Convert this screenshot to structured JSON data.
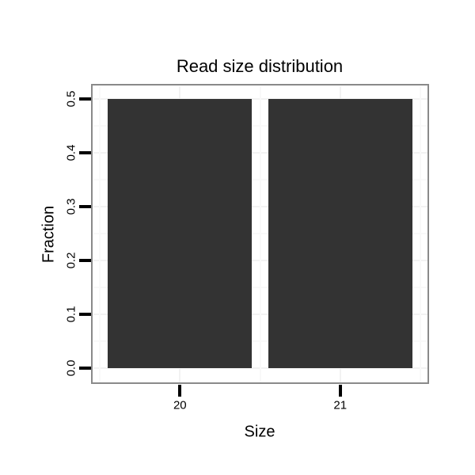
{
  "chart_data": {
    "type": "bar",
    "title": "Read size distribution",
    "xlabel": "Size",
    "ylabel": "Fraction",
    "categories": [
      "20",
      "21"
    ],
    "values": [
      0.5,
      0.5
    ],
    "ylim": [
      0,
      0.5
    ],
    "yticks": [
      "0.0",
      "0.1",
      "0.2",
      "0.3",
      "0.4",
      "0.5"
    ],
    "ytick_values": [
      0,
      0.1,
      0.2,
      0.3,
      0.4,
      0.5
    ],
    "minor_grid_step": 0.05,
    "grid": "on",
    "legend": "none",
    "colors": {
      "bar": "#333333",
      "panel_border": "#8a8a8a",
      "grid_major": "#f2f2f2",
      "grid_minor": "#f9f9f9",
      "tick": "#000000",
      "text": "#000000",
      "background": "#ffffff"
    }
  }
}
